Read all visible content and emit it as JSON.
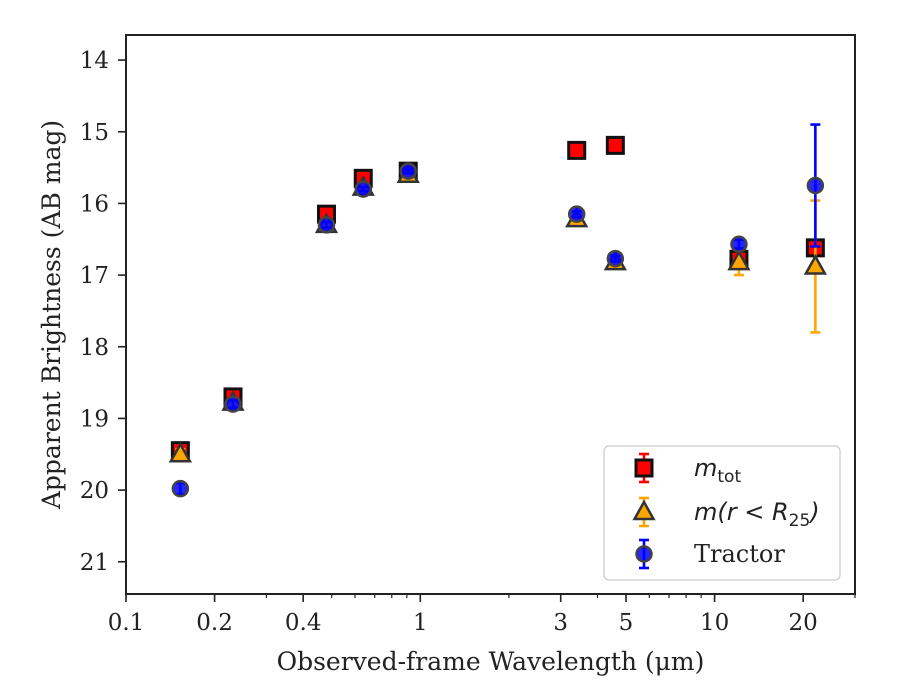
{
  "chart_data": {
    "type": "scatter",
    "title": "",
    "xlabel": "Observed-frame Wavelength (μm)",
    "ylabel": "Apparent Brightness (AB mag)",
    "xscale": "log",
    "xlim": [
      0.1,
      30
    ],
    "ylim": [
      21.45,
      13.65
    ],
    "y_inverted": true,
    "x_ticks": [
      0.1,
      0.2,
      0.4,
      1,
      3,
      5,
      10,
      20
    ],
    "x_tick_labels": [
      "0.1",
      "0.2",
      "0.4",
      "1",
      "3",
      "5",
      "10",
      "20"
    ],
    "y_ticks": [
      14,
      15,
      16,
      17,
      18,
      19,
      20,
      21
    ],
    "y_tick_labels": [
      "14",
      "15",
      "16",
      "17",
      "18",
      "19",
      "20",
      "21"
    ],
    "legend_position": "lower-right",
    "series": [
      {
        "name": "m_tot",
        "label_parts": [
          "m",
          "tot",
          ""
        ],
        "marker": "square",
        "color": "#ff0000",
        "edgecolor": "#111111",
        "points": [
          {
            "x": 0.153,
            "y": 19.45,
            "err": 0.08
          },
          {
            "x": 0.231,
            "y": 18.7,
            "err": 0.05
          },
          {
            "x": 0.48,
            "y": 16.15,
            "err": 0.03
          },
          {
            "x": 0.64,
            "y": 15.65,
            "err": 0.03
          },
          {
            "x": 0.91,
            "y": 15.55,
            "err": 0.03
          },
          {
            "x": 3.4,
            "y": 15.26,
            "err": 0.03
          },
          {
            "x": 4.6,
            "y": 15.19,
            "err": 0.03
          },
          {
            "x": 12.1,
            "y": 16.78,
            "err": 0.05
          },
          {
            "x": 22.0,
            "y": 16.62,
            "err": 0.05
          }
        ]
      },
      {
        "name": "m(r < R_25)",
        "label_parts": [
          "m(r < R",
          "25",
          ")"
        ],
        "marker": "triangle",
        "color": "#ffa500",
        "edgecolor": "#333333",
        "points": [
          {
            "x": 0.153,
            "y": 19.5,
            "err": 0.07
          },
          {
            "x": 0.231,
            "y": 18.78,
            "err": 0.05
          },
          {
            "x": 0.48,
            "y": 16.3,
            "err": 0.04
          },
          {
            "x": 0.64,
            "y": 15.78,
            "err": 0.03
          },
          {
            "x": 0.91,
            "y": 15.6,
            "err": 0.03
          },
          {
            "x": 3.4,
            "y": 16.22,
            "err": 0.04
          },
          {
            "x": 4.6,
            "y": 16.82,
            "err": 0.04
          },
          {
            "x": 12.1,
            "y": 16.82,
            "err": 0.18
          },
          {
            "x": 22.0,
            "y": 16.88,
            "err": 0.92
          }
        ]
      },
      {
        "name": "Tractor",
        "label_parts": [
          "Tractor",
          "",
          ""
        ],
        "marker": "circle",
        "color": "#0000ff",
        "edgecolor": "#444444",
        "points": [
          {
            "x": 0.153,
            "y": 19.98,
            "err": 0.08
          },
          {
            "x": 0.231,
            "y": 18.8,
            "err": 0.05
          },
          {
            "x": 0.48,
            "y": 16.3,
            "err": 0.04
          },
          {
            "x": 0.64,
            "y": 15.8,
            "err": 0.03
          },
          {
            "x": 0.91,
            "y": 15.55,
            "err": 0.03
          },
          {
            "x": 3.4,
            "y": 16.15,
            "err": 0.04
          },
          {
            "x": 4.6,
            "y": 16.77,
            "err": 0.04
          },
          {
            "x": 12.1,
            "y": 16.57,
            "err": 0.06
          },
          {
            "x": 22.0,
            "y": 15.75,
            "err": 0.85
          }
        ]
      }
    ]
  }
}
